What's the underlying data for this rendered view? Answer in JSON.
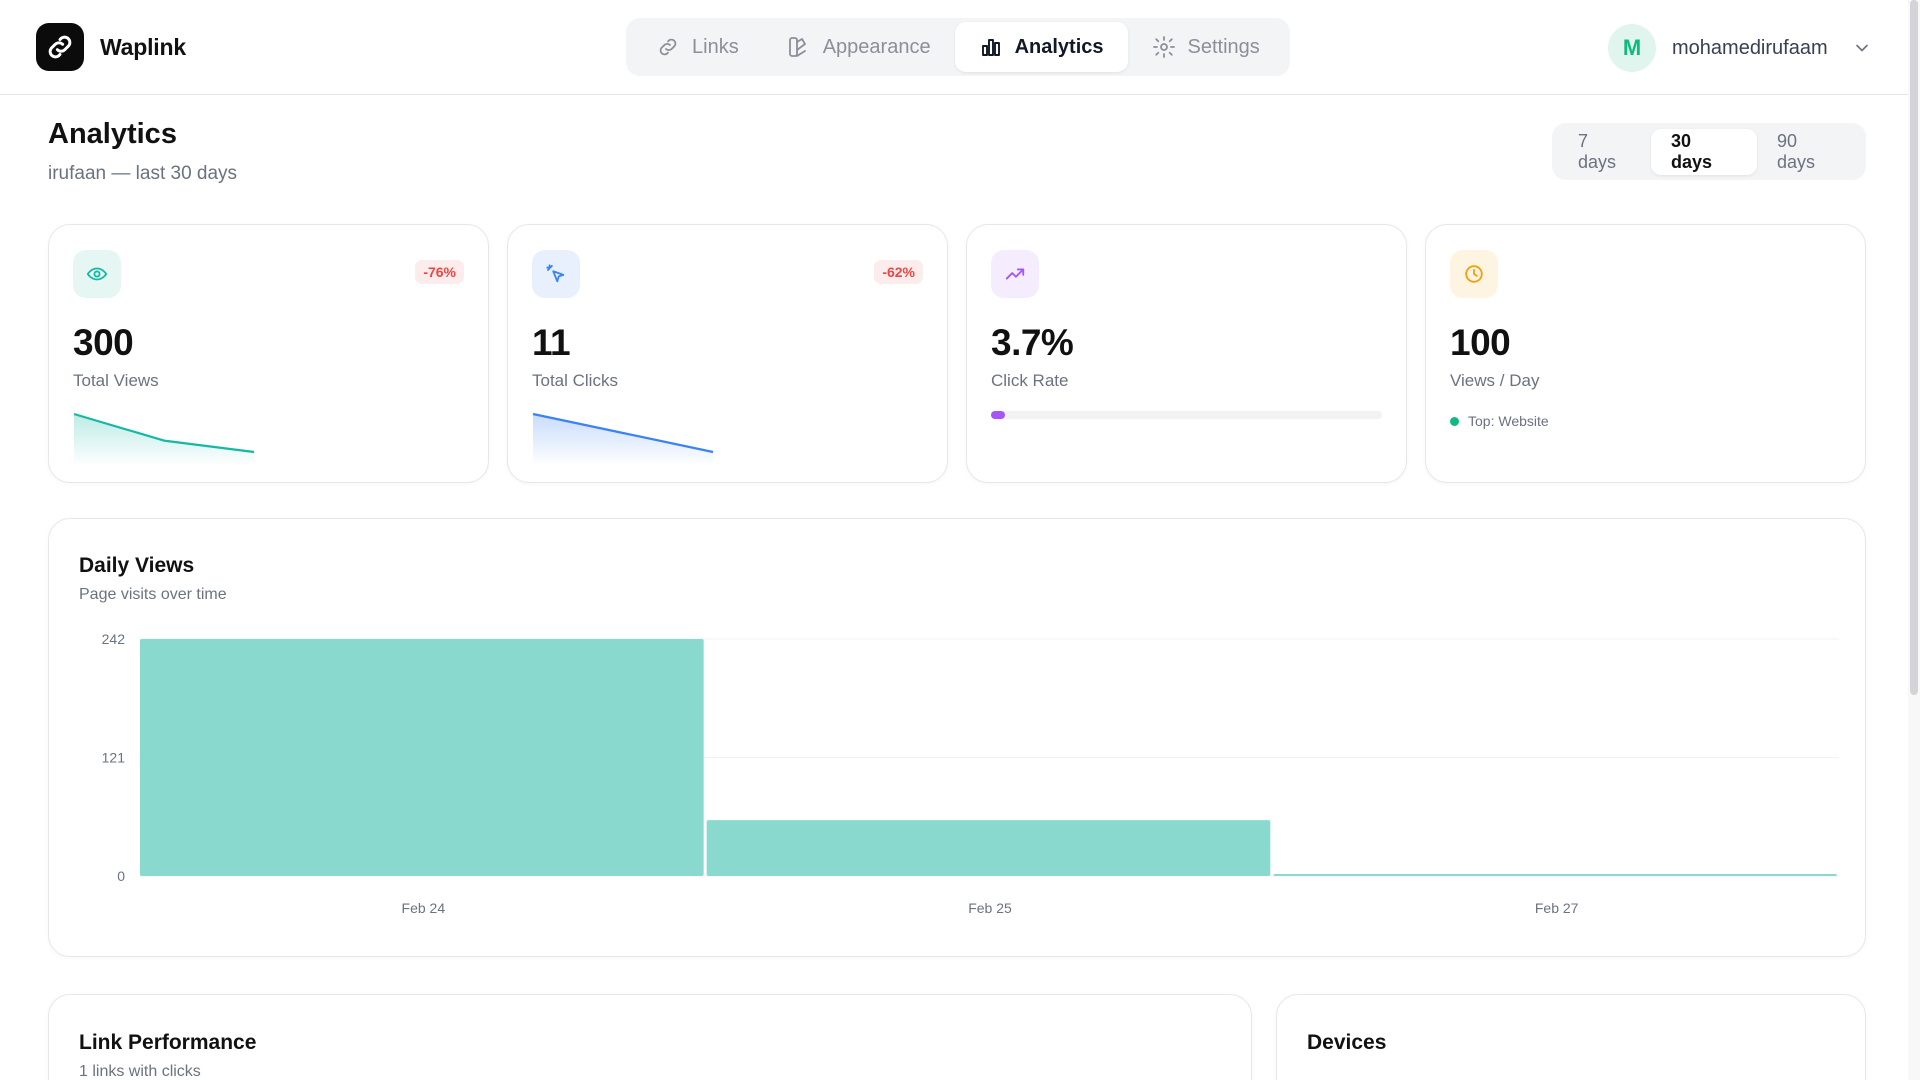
{
  "brand": {
    "name": "Waplink"
  },
  "nav": {
    "tabs": [
      {
        "label": "Links",
        "icon": "link-icon",
        "active": false
      },
      {
        "label": "Appearance",
        "icon": "palette-icon",
        "active": false
      },
      {
        "label": "Analytics",
        "icon": "bar-chart-icon",
        "active": true
      },
      {
        "label": "Settings",
        "icon": "gear-icon",
        "active": false
      }
    ]
  },
  "user": {
    "initial": "M",
    "name": "mohamedirufaam"
  },
  "header": {
    "title": "Analytics",
    "subtitle": "irufaan — last 30 days"
  },
  "range": {
    "options": [
      {
        "label": "7 days",
        "active": false
      },
      {
        "label": "30 days",
        "active": true
      },
      {
        "label": "90 days",
        "active": false
      }
    ]
  },
  "stats": {
    "views": {
      "value": "300",
      "label": "Total Views",
      "change": "-76%",
      "color": "#14b8a6",
      "trend": [
        1.0,
        0.3,
        0.0
      ]
    },
    "clicks": {
      "value": "11",
      "label": "Total Clicks",
      "change": "-62%",
      "color": "#3b82f6",
      "trend": [
        1.0,
        0.5,
        0.0
      ]
    },
    "rate": {
      "value": "3.7%",
      "label": "Click Rate",
      "color": "#a855f7",
      "progress_pct": 3.7
    },
    "per_day": {
      "value": "100",
      "label": "Views / Day",
      "top": "Top: Website",
      "color": "#f59e0b"
    }
  },
  "daily_views": {
    "title": "Daily Views",
    "subtitle": "Page visits over time",
    "chart_data": {
      "type": "bar",
      "categories": [
        "Feb 24",
        "Feb 25",
        "Feb 27"
      ],
      "values": [
        242,
        57,
        1
      ],
      "ylim": [
        0,
        242
      ],
      "yticks": [
        "242",
        "121",
        "0"
      ],
      "grid": true,
      "color": "#8ad9cf"
    }
  },
  "link_performance": {
    "title": "Link Performance",
    "subtitle": "1 links with clicks"
  },
  "devices": {
    "title": "Devices"
  }
}
